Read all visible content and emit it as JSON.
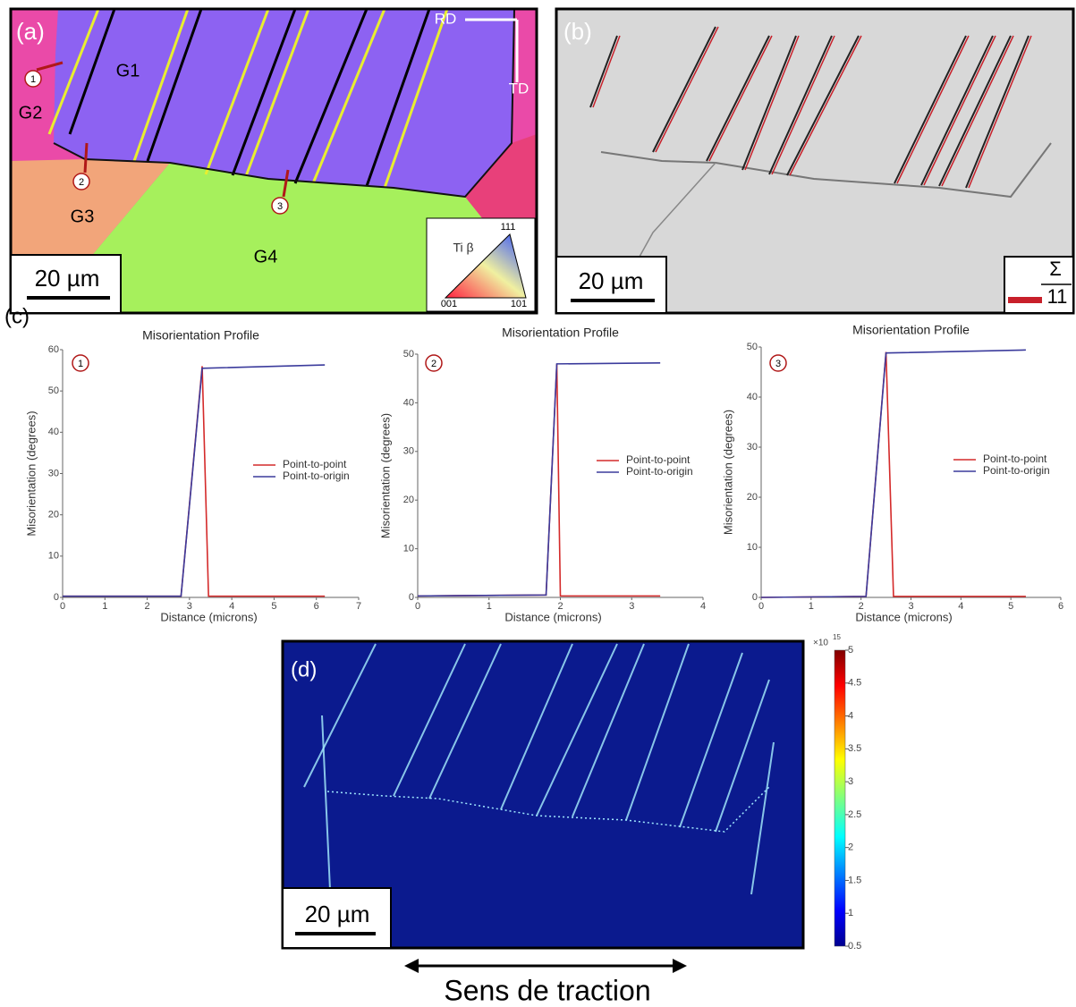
{
  "panel_a": {
    "label": "(a)",
    "rd": "RD",
    "td": "TD",
    "grains": [
      "G1",
      "G2",
      "G3",
      "G4"
    ],
    "markers": [
      "1",
      "2",
      "3"
    ],
    "scale_bar": "20 µm",
    "ipf_legend": {
      "phase": "Ti β",
      "corners": [
        "111",
        "001",
        "101"
      ]
    }
  },
  "panel_b": {
    "label": "(b)",
    "scale_bar": "20 µm",
    "sigma_symbol": "Σ",
    "sigma_value": "11"
  },
  "panel_c": {
    "label": "(c)"
  },
  "chart_data": [
    {
      "type": "line",
      "title": "Misorientation Profile",
      "marker": "1",
      "x_label": "Distance (microns)",
      "y_label": "Misorientation (degrees)",
      "xlim": [
        0,
        7
      ],
      "xticks": [
        0,
        1,
        2,
        3,
        4,
        5,
        6,
        7
      ],
      "ylim": [
        0,
        60
      ],
      "yticks": [
        0,
        10,
        20,
        30,
        40,
        50,
        60
      ],
      "series": [
        {
          "name": "Point-to-point",
          "color": "#d42a2a",
          "x": [
            0,
            2.8,
            3.3,
            3.45,
            6.2
          ],
          "values": [
            0.3,
            0.3,
            56,
            0.3,
            0.3
          ]
        },
        {
          "name": "Point-to-origin",
          "color": "#3b3b9c",
          "x": [
            0,
            2.8,
            3.3,
            6.2
          ],
          "values": [
            0.3,
            0.3,
            55.5,
            56.3
          ]
        }
      ]
    },
    {
      "type": "line",
      "title": "Misorientation Profile",
      "marker": "2",
      "x_label": "Distance (microns)",
      "y_label": "Misorientation (degrees)",
      "xlim": [
        0,
        4
      ],
      "xticks": [
        0,
        1,
        2,
        3,
        4
      ],
      "ylim": [
        0,
        50
      ],
      "yticks": [
        0,
        10,
        20,
        30,
        40,
        50
      ],
      "series": [
        {
          "name": "Point-to-point",
          "color": "#d42a2a",
          "x": [
            0,
            1.8,
            1.95,
            2.0,
            3.4
          ],
          "values": [
            0.3,
            0.5,
            48,
            0.3,
            0.3
          ]
        },
        {
          "name": "Point-to-origin",
          "color": "#3b3b9c",
          "x": [
            0,
            1.8,
            1.95,
            3.4
          ],
          "values": [
            0.3,
            0.5,
            48,
            48.2
          ]
        }
      ]
    },
    {
      "type": "line",
      "title": "Misorientation Profile",
      "marker": "3",
      "x_label": "Distance (microns)",
      "y_label": "Misorientation (degrees)",
      "xlim": [
        0,
        6
      ],
      "xticks": [
        0,
        1,
        2,
        3,
        4,
        5,
        6
      ],
      "ylim": [
        0,
        50
      ],
      "yticks": [
        0,
        10,
        20,
        30,
        40,
        50
      ],
      "series": [
        {
          "name": "Point-to-point",
          "color": "#d42a2a",
          "x": [
            0,
            2.1,
            2.5,
            2.65,
            5.3
          ],
          "values": [
            0,
            0.2,
            49,
            0.2,
            0.2
          ]
        },
        {
          "name": "Point-to-origin",
          "color": "#3b3b9c",
          "x": [
            0,
            2.1,
            2.5,
            5.3
          ],
          "values": [
            0,
            0.2,
            48.8,
            49.4
          ]
        }
      ]
    }
  ],
  "panel_d": {
    "label": "(d)",
    "scale_bar": "20 µm",
    "colorbar": {
      "multiplier": "×10",
      "exponent": "15",
      "ylim": [
        0.5,
        5
      ],
      "yticks": [
        0.5,
        1,
        1.5,
        2,
        2.5,
        3,
        3.5,
        4,
        4.5,
        5
      ]
    }
  },
  "caption": "Sens de traction"
}
